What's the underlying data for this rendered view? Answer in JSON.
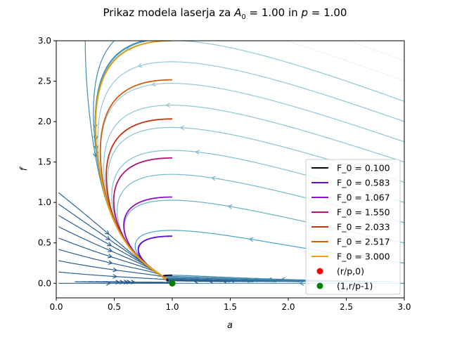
{
  "figure": {
    "title_main": "Prikaz modela laserja za ",
    "title_A": "A",
    "title_A_sub": "0",
    "title_mid": " = 1.00 in ",
    "title_p": "p",
    "title_end": " = 1.00"
  },
  "chart_data": {
    "type": "streamplot",
    "xlabel": "a",
    "ylabel": "f",
    "xlim": [
      0,
      3
    ],
    "ylim": [
      -0.18,
      3.0
    ],
    "xticks": [
      "0.0",
      "0.5",
      "1.0",
      "1.5",
      "2.0",
      "2.5",
      "3.0"
    ],
    "yticks": [
      "0.0",
      "0.5",
      "1.0",
      "1.5",
      "2.0",
      "2.5",
      "3.0"
    ],
    "params": {
      "A0": 1.0,
      "p": 1.0
    },
    "series": [
      {
        "name": "F_0 = 0.100",
        "color": "#000000",
        "F0": 0.1
      },
      {
        "name": "F_0 = 0.583",
        "color": "#5a0fd6",
        "F0": 0.583
      },
      {
        "name": "F_0 = 1.067",
        "color": "#8a12c8",
        "F0": 1.067
      },
      {
        "name": "F_0 = 1.550",
        "color": "#b0127a",
        "F0": 1.55
      },
      {
        "name": "F_0 = 2.033",
        "color": "#c8300e",
        "F0": 2.033
      },
      {
        "name": "F_0 = 2.517",
        "color": "#d2600a",
        "F0": 2.517
      },
      {
        "name": "F_0 = 3.000",
        "color": "#e8a208",
        "F0": 3.0
      }
    ],
    "fixed_points": [
      {
        "name": "(r/p,0)",
        "color": "#ff0000",
        "x": 1.0,
        "y": 0.0
      },
      {
        "name": "(1,r/p-1)",
        "color": "#008000",
        "x": 1.0,
        "y": 0.0
      }
    ],
    "legend_position": "lower right",
    "grid": false
  }
}
